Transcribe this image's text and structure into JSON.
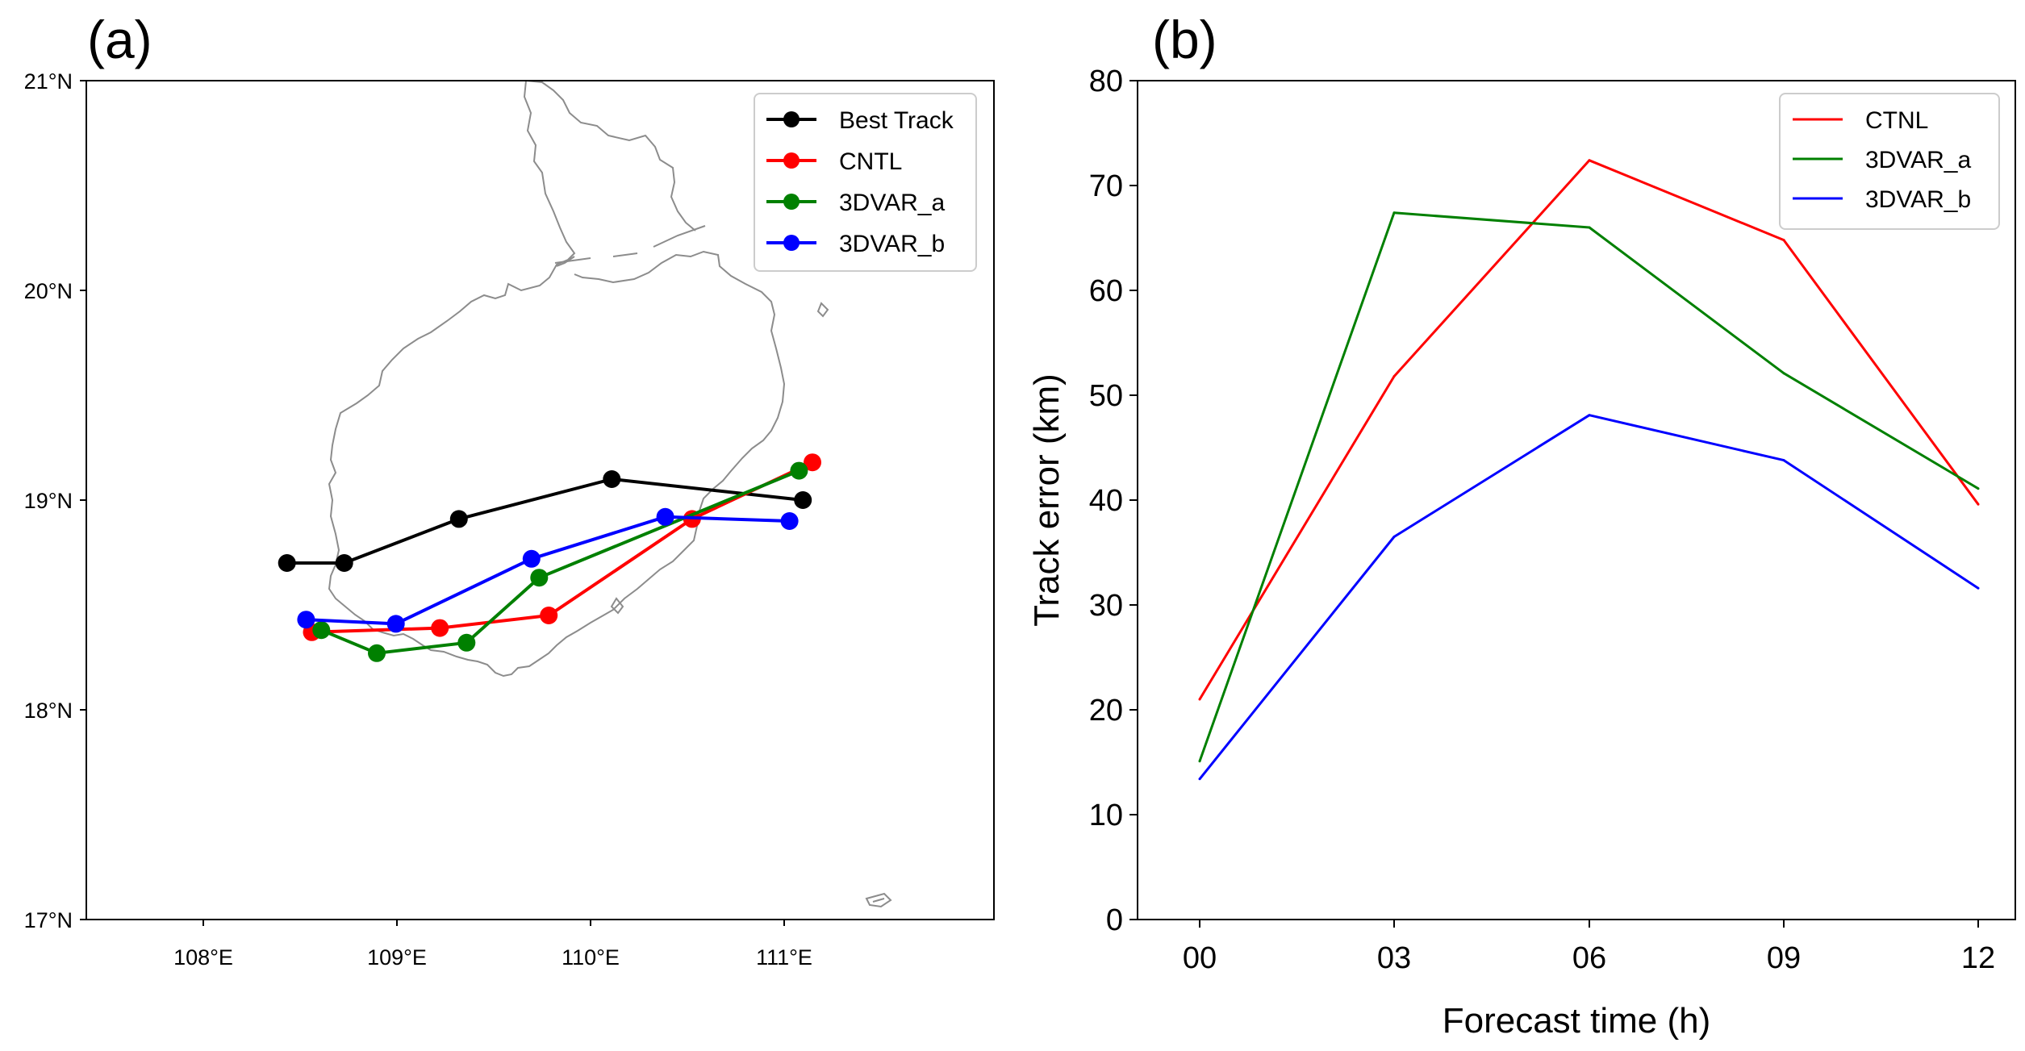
{
  "panels": {
    "a": {
      "label": "(a)"
    },
    "b": {
      "label": "(b)"
    }
  },
  "chart_data": [
    {
      "type": "line",
      "subtype": "map-track",
      "panel": "(a)",
      "xlim": [
        107.35,
        112.1
      ],
      "ylim": [
        17.0,
        21.0
      ],
      "xticks": [
        108,
        109,
        110,
        111
      ],
      "xtick_labels": [
        "108°E",
        "109°E",
        "110°E",
        "111°E"
      ],
      "yticks": [
        17,
        18,
        19,
        20,
        21
      ],
      "ytick_labels": [
        "17°N",
        "18°N",
        "19°N",
        "20°N",
        "21°N"
      ],
      "legend_location": "upper right",
      "series": [
        {
          "name": "Best Track",
          "color": "#000000",
          "points": [
            [
              108.4,
              18.7
            ],
            [
              108.7,
              18.7
            ],
            [
              109.3,
              18.91
            ],
            [
              110.1,
              19.1
            ],
            [
              111.1,
              19.0
            ]
          ]
        },
        {
          "name": "CNTL",
          "color": "#ff0000",
          "points": [
            [
              108.53,
              18.37
            ],
            [
              109.2,
              18.39
            ],
            [
              109.77,
              18.45
            ],
            [
              110.52,
              18.91
            ],
            [
              111.15,
              19.18
            ]
          ]
        },
        {
          "name": "3DVAR_a",
          "color": "#008000",
          "points": [
            [
              108.58,
              18.38
            ],
            [
              108.87,
              18.27
            ],
            [
              109.34,
              18.32
            ],
            [
              109.72,
              18.63
            ],
            [
              111.08,
              19.14
            ]
          ]
        },
        {
          "name": "3DVAR_b",
          "color": "#0000ff",
          "points": [
            [
              108.5,
              18.43
            ],
            [
              108.97,
              18.41
            ],
            [
              109.68,
              18.72
            ],
            [
              110.38,
              18.92
            ],
            [
              111.03,
              18.9
            ]
          ]
        }
      ]
    },
    {
      "type": "line",
      "panel": "(b)",
      "categories": [
        "00",
        "03",
        "06",
        "09",
        "12"
      ],
      "xlabel": "Forecast time (h)",
      "ylabel": "Track error (km)",
      "ylim": [
        0,
        80
      ],
      "yticks": [
        0,
        10,
        20,
        30,
        40,
        50,
        60,
        70,
        80
      ],
      "legend_location": "upper right",
      "series": [
        {
          "name": "CTNL",
          "color": "#ff0000",
          "values": [
            21.0,
            51.8,
            72.4,
            64.8,
            39.6
          ]
        },
        {
          "name": "3DVAR_a",
          "color": "#008000",
          "values": [
            15.1,
            67.4,
            66.0,
            52.1,
            41.1
          ]
        },
        {
          "name": "3DVAR_b",
          "color": "#0000ff",
          "values": [
            13.4,
            36.5,
            48.1,
            43.8,
            31.6
          ]
        }
      ]
    }
  ]
}
